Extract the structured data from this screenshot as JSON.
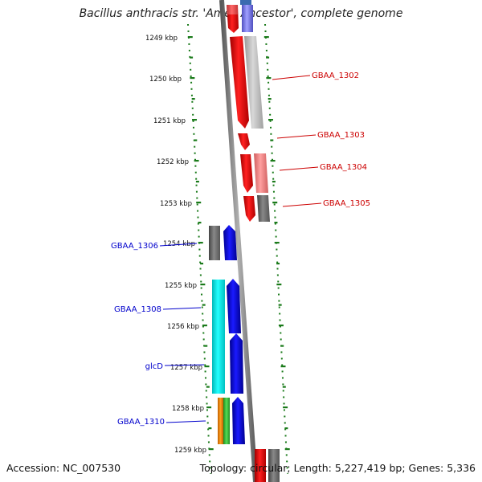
{
  "title": "Bacillus anthracis str. 'Ames Ancestor', complete genome",
  "footer": {
    "accession": "Accession: NC_007530",
    "summary": "Topology: circular; Length: 5,227,419 bp; Genes: 5,336"
  },
  "ruler": {
    "unit": "kbp",
    "ticks": [
      1249,
      1250,
      1251,
      1252,
      1253,
      1254,
      1255,
      1256,
      1257,
      1258,
      1259
    ]
  },
  "gene_labels": [
    {
      "text": "GBAA_1302",
      "strand": "forward",
      "color": "#cc0000"
    },
    {
      "text": "GBAA_1303",
      "strand": "forward",
      "color": "#cc0000"
    },
    {
      "text": "GBAA_1304",
      "strand": "forward",
      "color": "#cc0000"
    },
    {
      "text": "GBAA_1305",
      "strand": "forward",
      "color": "#cc0000"
    },
    {
      "text": "GBAA_1306",
      "strand": "reverse",
      "color": "#0000cc"
    },
    {
      "text": "GBAA_1308",
      "strand": "reverse",
      "color": "#0000cc"
    },
    {
      "text": "glcD",
      "strand": "reverse",
      "color": "#0000cc"
    },
    {
      "text": "GBAA_1310",
      "strand": "reverse",
      "color": "#0000cc"
    }
  ],
  "colors": {
    "forward_cds": "#ff0000",
    "reverse_cds": "#0000ff",
    "backbone": "#8a8a8a",
    "ruler_ticks": "#1a7a1a",
    "cog_cyan": "#00e5e5",
    "cog_orange": "#f08c00",
    "cog_green": "#33bb33",
    "cog_gray": "#777777",
    "cog_light_gray": "#bdbdbd",
    "cog_pink": "#f08080",
    "cog_lavender": "#8080e0"
  }
}
